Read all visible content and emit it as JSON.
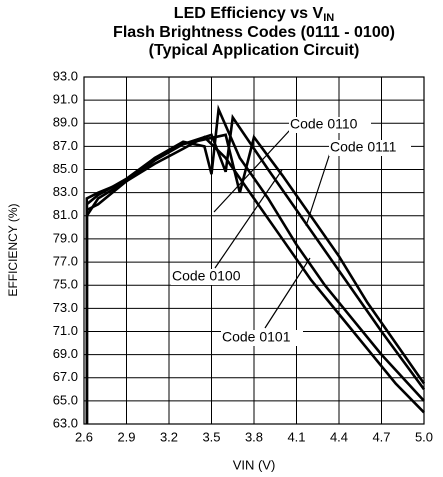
{
  "chart_data": {
    "type": "line",
    "title": "LED Efficiency vs V",
    "title_subscript": "IN",
    "subtitle": [
      "Flash Brightness Codes (0111 - 0100)",
      "(Typical Application Circuit)"
    ],
    "xlabel": "VIN (V)",
    "ylabel": "EFFICIENCY (%)",
    "xlim": [
      2.6,
      5.0
    ],
    "ylim": [
      63,
      93
    ],
    "xticks": [
      2.6,
      2.9,
      3.2,
      3.5,
      3.8,
      4.1,
      4.4,
      4.7,
      {
        "value": 5,
        "label": "5.0"
      }
    ],
    "yticks": [
      {
        "value": 63,
        "label": "63.0"
      },
      {
        "value": 65,
        "label": "65.0"
      },
      {
        "value": 67,
        "label": "67.0"
      },
      {
        "value": 69,
        "label": "69.0"
      },
      {
        "value": 71,
        "label": "71.0"
      },
      {
        "value": 73,
        "label": "73.0"
      },
      {
        "value": 75,
        "label": "75.0"
      },
      {
        "value": 77,
        "label": "77.0"
      },
      {
        "value": 79,
        "label": "79.0"
      },
      {
        "value": 81,
        "label": "81.0"
      },
      {
        "value": 83,
        "label": "83.0"
      },
      {
        "value": 85,
        "label": "85.0"
      },
      {
        "value": 87,
        "label": "87.0"
      },
      {
        "value": 89,
        "label": "89.0"
      },
      {
        "value": 91,
        "label": "91.0"
      },
      {
        "value": 93,
        "label": "93.0"
      }
    ],
    "grid": true,
    "series": [
      {
        "name": "Code 0110",
        "color": "#000000",
        "x": [
          2.62,
          2.62,
          2.7,
          2.9,
          3.1,
          3.3,
          3.5,
          3.6,
          3.65,
          3.9,
          4.1,
          4.3,
          4.5,
          4.7,
          5.0
        ],
        "values": [
          63,
          82,
          82.8,
          84.2,
          86,
          87.2,
          88,
          84.8,
          89.5,
          85,
          81.5,
          78,
          74.5,
          71,
          66
        ]
      },
      {
        "name": "Code 0111",
        "color": "#000000",
        "x": [
          2.62,
          2.62,
          2.7,
          2.9,
          3.1,
          3.3,
          3.6,
          3.7,
          3.8,
          4.0,
          4.2,
          4.4,
          4.6,
          4.8,
          5.0
        ],
        "values": [
          63,
          82.5,
          83,
          84,
          85.8,
          87.2,
          88,
          83,
          87.8,
          84.5,
          81,
          77.5,
          73.5,
          70,
          66.5
        ]
      },
      {
        "name": "Code 0100",
        "color": "#000000",
        "x": [
          2.62,
          2.62,
          2.7,
          2.9,
          3.1,
          3.3,
          3.45,
          3.6,
          3.8,
          4.0,
          4.2,
          4.4,
          4.6,
          4.8,
          5.0
        ],
        "values": [
          63,
          81,
          82.5,
          84,
          85.5,
          86.8,
          87.8,
          86,
          82.5,
          79,
          75.5,
          72.5,
          69.5,
          66.5,
          64
        ]
      },
      {
        "name": "Code 0101",
        "color": "#000000",
        "x": [
          2.62,
          2.62,
          2.7,
          2.9,
          3.1,
          3.3,
          3.45,
          3.5,
          3.55,
          3.7,
          3.9,
          4.1,
          4.3,
          4.5,
          4.7,
          5.0
        ],
        "values": [
          63,
          81.5,
          82,
          84,
          86,
          87.4,
          87,
          84.6,
          90.2,
          86,
          82.5,
          78.5,
          75,
          72,
          69,
          65
        ]
      }
    ]
  }
}
